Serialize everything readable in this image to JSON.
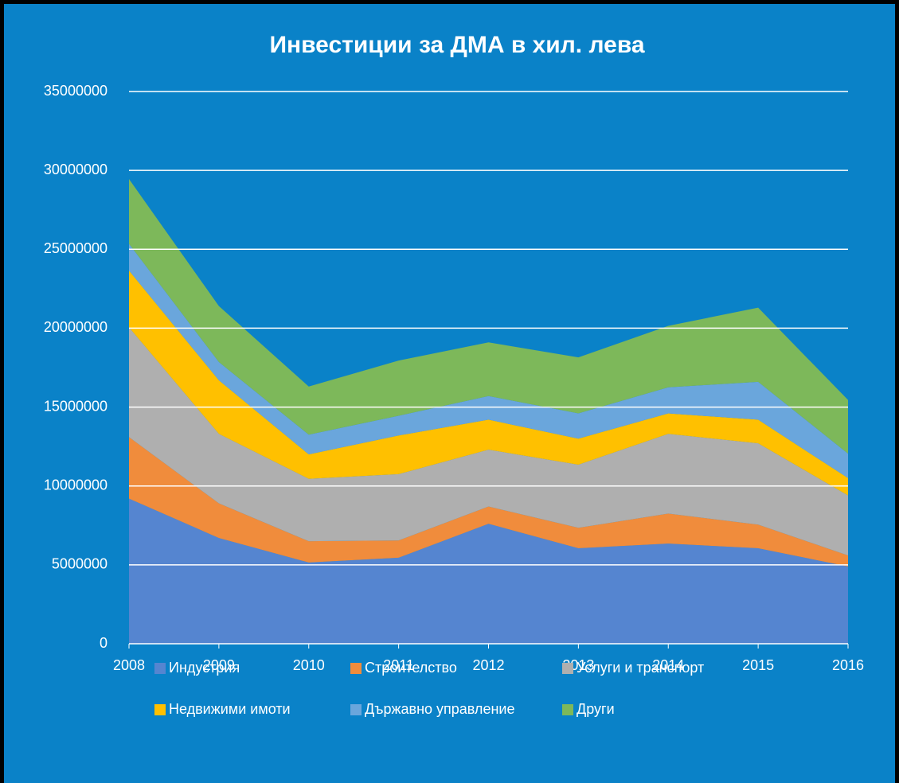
{
  "chart_data": {
    "type": "stacked_area",
    "title": "Инвестиции за ДМА в хил. лева",
    "categories": [
      "2008",
      "2009",
      "2010",
      "2011",
      "2012",
      "2013",
      "2014",
      "2015",
      "2016"
    ],
    "series": [
      {
        "name": "Индустрия",
        "color": "#5585d0",
        "values": [
          9200000,
          6700000,
          5150000,
          5450000,
          7600000,
          6050000,
          6350000,
          6050000,
          4900000
        ]
      },
      {
        "name": "Строителство",
        "color": "#f08c3c",
        "values": [
          3900000,
          2200000,
          1350000,
          1100000,
          1100000,
          1300000,
          1900000,
          1500000,
          700000
        ]
      },
      {
        "name": "Услуги и транспорт",
        "color": "#afafaf",
        "values": [
          6950000,
          4400000,
          3950000,
          4200000,
          3600000,
          4000000,
          5050000,
          5150000,
          3800000
        ]
      },
      {
        "name": "Недвижими имоти",
        "color": "#ffc000",
        "values": [
          3600000,
          3400000,
          1550000,
          2450000,
          1900000,
          1650000,
          1300000,
          1500000,
          1100000
        ]
      },
      {
        "name": "Държавно управление",
        "color": "#6aa6dc",
        "values": [
          1700000,
          1150000,
          1250000,
          1250000,
          1500000,
          1600000,
          1650000,
          2400000,
          1550000
        ]
      },
      {
        "name": "Други",
        "color": "#7db85a",
        "values": [
          4100000,
          3550000,
          3050000,
          3500000,
          3400000,
          3550000,
          3900000,
          4700000,
          3400000
        ]
      }
    ],
    "ylim": [
      0,
      35000000
    ],
    "yticks": [
      0,
      5000000,
      10000000,
      15000000,
      20000000,
      25000000,
      30000000,
      35000000
    ],
    "grid": true
  }
}
